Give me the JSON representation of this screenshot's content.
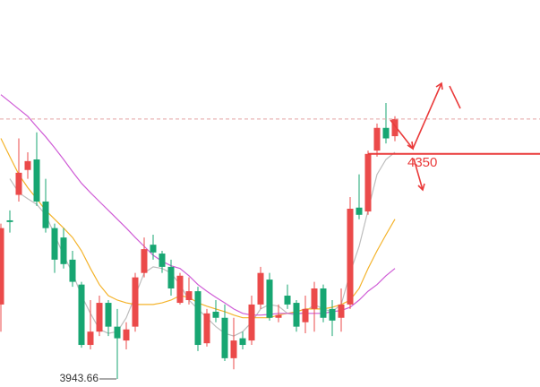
{
  "chart_data": {
    "type": "candlestick",
    "ylim": [
      3929,
      4628
    ],
    "open": [
      4078,
      4230,
      4276,
      4321,
      4340,
      4264,
      4216,
      4199,
      4159,
      4114,
      4005,
      4029,
      4081,
      4038,
      4013,
      4038,
      4135,
      4186,
      4170,
      4146,
      4081,
      4086,
      4102,
      4008,
      4065,
      4054,
      3981,
      4017,
      4013,
      4078,
      4123,
      4054,
      4094,
      4081,
      4046,
      4070,
      4107,
      4070,
      4054,
      4078,
      4253,
      4246,
      4356,
      4397,
      4382
    ],
    "high": [
      4224,
      4248,
      4378,
      4353,
      4389,
      4305,
      4224,
      4216,
      4175,
      4119,
      4086,
      4094,
      4086,
      4070,
      4046,
      4135,
      4199,
      4204,
      4175,
      4159,
      4135,
      4127,
      4110,
      4070,
      4086,
      4078,
      4054,
      4029,
      4094,
      4146,
      4135,
      4078,
      4114,
      4086,
      4094,
      4119,
      4114,
      4086,
      4107,
      4272,
      4313,
      4356,
      4405,
      4442,
      4418
    ],
    "low": [
      4029,
      4208,
      4264,
      4305,
      4256,
      4208,
      4135,
      4143,
      4110,
      4000,
      3997,
      4021,
      4021,
      3943.66,
      3997,
      4029,
      4127,
      4159,
      4135,
      4094,
      4078,
      4078,
      3994,
      4002,
      4046,
      3976,
      3961,
      3997,
      4005,
      4070,
      4049,
      4046,
      4070,
      4029,
      4026,
      4029,
      4046,
      4021,
      4029,
      4070,
      4232,
      4240,
      4345,
      4369,
      4373
    ],
    "close": [
      4216,
      4227,
      4316,
      4337,
      4264,
      4216,
      4159,
      4151,
      4119,
      4005,
      4029,
      4081,
      4038,
      4017,
      4033,
      4127,
      4178,
      4172,
      4146,
      4107,
      4130,
      4102,
      4005,
      4062,
      4054,
      3981,
      4013,
      4005,
      4078,
      4135,
      4054,
      4059,
      4078,
      4038,
      4070,
      4107,
      4054,
      4049,
      4078,
      4251,
      4240,
      4350,
      4397,
      4378,
      4413
    ],
    "up_color": "#eb4a4a",
    "down_color": "#17a672",
    "series": [
      {
        "color": "#bdbdbd",
        "values": [
          null,
          4305,
          4280,
          4269,
          4259,
          4240,
          4204,
          4167,
          4135,
          4094,
          4062,
          4033,
          4026,
          4029,
          4054,
          4094,
          4135,
          4146,
          4143,
          4135,
          4114,
          4086,
          4070,
          4054,
          4038,
          4026,
          4021,
          4029,
          4046,
          4070,
          4078,
          4075,
          4062,
          4059,
          4065,
          4078,
          4070,
          4065,
          4078,
          4135,
          4183,
          4248,
          4313,
          4340,
          4353
        ]
      },
      {
        "color": "#f4b32b",
        "values": [
          4378,
          4345,
          4313,
          4289,
          4269,
          4248,
          4232,
          4216,
          4199,
          4175,
          4143,
          4114,
          4094,
          4086,
          4081,
          4078,
          4078,
          4078,
          4081,
          4086,
          4094,
          4091,
          4081,
          4075,
          4070,
          4065,
          4059,
          4054,
          4054,
          4054,
          4054,
          4059,
          4062,
          4065,
          4070,
          4070,
          4070,
          4073,
          4078,
          4086,
          4107,
          4143,
          4175,
          4204,
          4232
        ]
      },
      {
        "color": "#cf5cd6",
        "values": [
          4457,
          4444,
          4431,
          4418,
          4399,
          4381,
          4361,
          4340,
          4318,
          4297,
          4280,
          4264,
          4248,
          4232,
          4216,
          4199,
          4183,
          4167,
          4156,
          4148,
          4143,
          4130,
          4114,
          4102,
          4091,
          4081,
          4070,
          4062,
          4059,
          4059,
          4060,
          4062,
          4062,
          4062,
          4062,
          4062,
          4062,
          4065,
          4067,
          4073,
          4086,
          4102,
          4114,
          4130,
          4143
        ]
      }
    ],
    "price_line": 4413,
    "level": 4350
  }
}
